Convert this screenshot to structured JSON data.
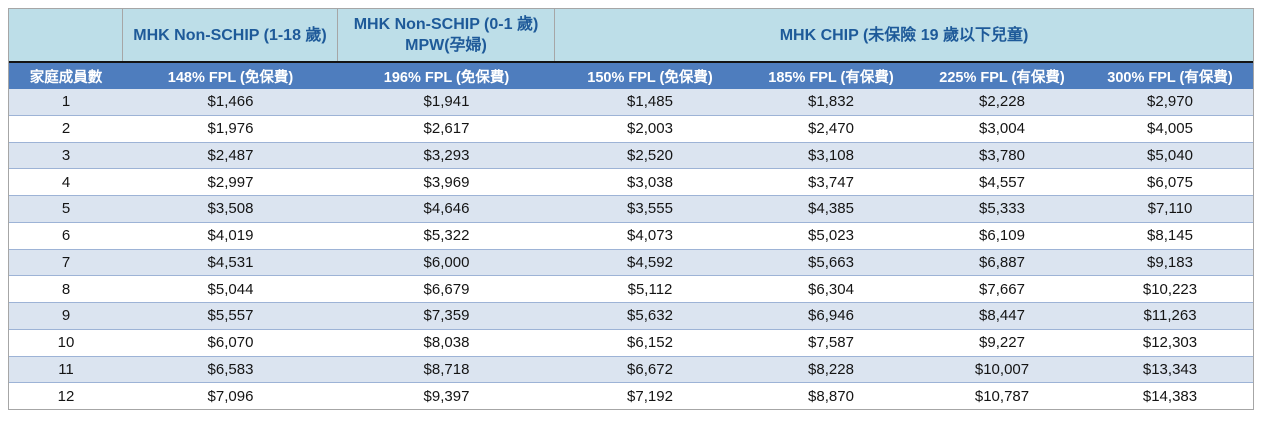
{
  "table": {
    "group_headers": {
      "blank": "",
      "non_schip_1_18": "MHK Non-SCHIP (1-18 歲)",
      "non_schip_0_1_line1": "MHK Non-SCHIP (0-1 歲)",
      "non_schip_0_1_line2": "MPW(孕婦)",
      "chip": "MHK CHIP (未保險 19 歲以下兒童)"
    },
    "columns": [
      "家庭成員數",
      "148% FPL (免保費)",
      "196% FPL (免保費)",
      "150% FPL (免保費)",
      "185% FPL (有保費)",
      "225% FPL (有保費)",
      "300% FPL (有保費)"
    ],
    "rows": [
      [
        "1",
        "$1,466",
        "$1,941",
        "$1,485",
        "$1,832",
        "$2,228",
        "$2,970"
      ],
      [
        "2",
        "$1,976",
        "$2,617",
        "$2,003",
        "$2,470",
        "$3,004",
        "$4,005"
      ],
      [
        "3",
        "$2,487",
        "$3,293",
        "$2,520",
        "$3,108",
        "$3,780",
        "$5,040"
      ],
      [
        "4",
        "$2,997",
        "$3,969",
        "$3,038",
        "$3,747",
        "$4,557",
        "$6,075"
      ],
      [
        "5",
        "$3,508",
        "$4,646",
        "$3,555",
        "$4,385",
        "$5,333",
        "$7,110"
      ],
      [
        "6",
        "$4,019",
        "$5,322",
        "$4,073",
        "$5,023",
        "$6,109",
        "$8,145"
      ],
      [
        "7",
        "$4,531",
        "$6,000",
        "$4,592",
        "$5,663",
        "$6,887",
        "$9,183"
      ],
      [
        "8",
        "$5,044",
        "$6,679",
        "$5,112",
        "$6,304",
        "$7,667",
        "$10,223"
      ],
      [
        "9",
        "$5,557",
        "$7,359",
        "$5,632",
        "$6,946",
        "$8,447",
        "$11,263"
      ],
      [
        "10",
        "$6,070",
        "$8,038",
        "$6,152",
        "$7,587",
        "$9,227",
        "$12,303"
      ],
      [
        "11",
        "$6,583",
        "$8,718",
        "$6,672",
        "$8,228",
        "$10,007",
        "$13,343"
      ],
      [
        "12",
        "$7,096",
        "$9,397",
        "$7,192",
        "$8,870",
        "$10,787",
        "$14,383"
      ]
    ],
    "colors": {
      "group_header_bg": "#bddee8",
      "group_header_text": "#1e5a99",
      "column_header_bg": "#4e7dbe",
      "column_header_text": "#ffffff",
      "odd_row_bg": "#dbe4f0",
      "even_row_bg": "#ffffff",
      "row_border": "#9db3d6",
      "outer_border": "#a6a6a6",
      "dark_divider": "#141414"
    }
  }
}
